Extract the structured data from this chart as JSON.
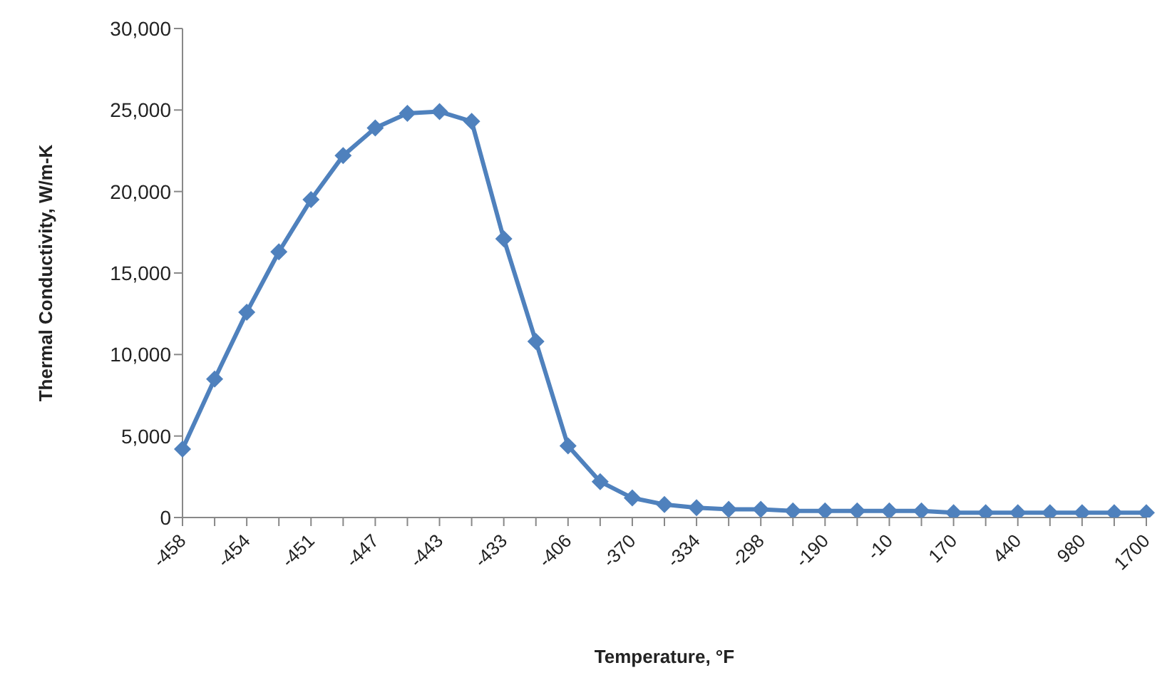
{
  "chart_data": {
    "type": "line",
    "xlabel": "Temperature, °F",
    "ylabel": "Thermal Conductivity,  W/m-K",
    "categories": [
      "-458",
      null,
      "-454",
      null,
      "-451",
      null,
      "-447",
      null,
      "-443",
      null,
      "-433",
      null,
      "-406",
      null,
      "-370",
      null,
      "-334",
      null,
      "-298",
      null,
      "-190",
      null,
      "-10",
      null,
      "170",
      null,
      "440",
      null,
      "980",
      null,
      "1700"
    ],
    "series": [
      {
        "color": "#4f81bd",
        "values": [
          4200,
          8500,
          12600,
          16300,
          19500,
          22200,
          23900,
          24800,
          24900,
          24300,
          17100,
          10800,
          4400,
          2200,
          1200,
          800,
          600,
          500,
          500,
          400,
          400,
          400,
          400,
          400,
          300,
          300,
          300,
          300,
          300,
          300,
          300
        ]
      }
    ],
    "ylim": [
      0,
      30000
    ],
    "yticks": [
      {
        "value": 0,
        "label": "0"
      },
      {
        "value": 5000,
        "label": "5,000"
      },
      {
        "value": 10000,
        "label": "10,000"
      },
      {
        "value": 15000,
        "label": "15,000"
      },
      {
        "value": 20000,
        "label": "20,000"
      },
      {
        "value": 25000,
        "label": "25,000"
      },
      {
        "value": 30000,
        "label": "30,000"
      }
    ],
    "grid": false,
    "legend": false,
    "marker": "diamond",
    "line_style": "solid"
  }
}
